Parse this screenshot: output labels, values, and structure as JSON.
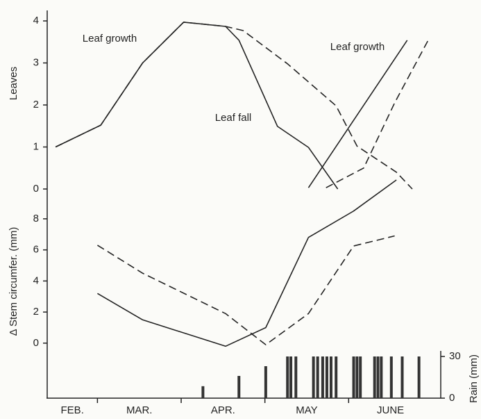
{
  "chart_data": [
    {
      "type": "line",
      "ylabel": "Leaves",
      "xlim": [
        0.4,
        5.1
      ],
      "ylim": [
        0,
        4.25
      ],
      "yticks": [
        0,
        1,
        2,
        3,
        4
      ],
      "color": "#222222",
      "annotations": [
        "Leaf growth",
        "Leaf fall",
        "Leaf growth"
      ],
      "series": [
        {
          "dash": false,
          "x": [
            0.5,
            1.04,
            1.54,
            2.03,
            2.53,
            2.69,
            3.15,
            3.52,
            3.87
          ],
          "values": [
            1.0,
            1.52,
            3.0,
            3.97,
            3.87,
            3.54,
            1.49,
            0.99,
            0
          ]
        },
        {
          "dash": true,
          "x": [
            0.5,
            1.04,
            1.54,
            2.03,
            2.53,
            2.74,
            3.27,
            3.85,
            4.1,
            4.57,
            4.76
          ],
          "values": [
            1.0,
            1.52,
            3.0,
            3.97,
            3.87,
            3.77,
            2.98,
            1.98,
            1.02,
            0.4,
            0
          ]
        },
        {
          "dash": false,
          "x": [
            3.52,
            4.7
          ],
          "values": [
            0.03,
            3.54
          ]
        },
        {
          "dash": true,
          "x": [
            3.73,
            4.18,
            4.55,
            4.95
          ],
          "values": [
            0.03,
            0.5,
            2.05,
            3.54
          ]
        }
      ]
    },
    {
      "type": "line",
      "ylabel": "Δ Stem circumfer. (mm)",
      "xlim": [
        0.4,
        5.1
      ],
      "ylim": [
        -0.5,
        10.5
      ],
      "yticks": [
        0,
        2,
        4,
        6,
        8
      ],
      "color": "#222222",
      "series": [
        {
          "dash": false,
          "x": [
            1.0,
            1.54,
            2.53,
            3.01,
            3.52,
            4.06,
            4.57
          ],
          "values": [
            3.2,
            1.5,
            -0.2,
            1.0,
            6.8,
            8.5,
            10.5
          ]
        },
        {
          "dash": true,
          "x": [
            1.0,
            1.54,
            2.53,
            3.01,
            3.52,
            4.06,
            4.55
          ],
          "values": [
            6.3,
            4.5,
            1.9,
            -0.1,
            1.9,
            6.25,
            6.9
          ]
        }
      ]
    },
    {
      "type": "bar",
      "ylabel": "Rain (mm)",
      "xlim": [
        0.4,
        5.1
      ],
      "ylim": [
        0,
        30
      ],
      "yticks": [
        0,
        30
      ],
      "color": "#333333",
      "categories": [
        "FEB.",
        "MAR.",
        "APR.",
        "MAY",
        "JUNE"
      ],
      "x": [
        2.26,
        2.69,
        3.01,
        3.27,
        3.31,
        3.37,
        3.58,
        3.63,
        3.69,
        3.74,
        3.79,
        3.85,
        4.06,
        4.1,
        4.14,
        4.31,
        4.35,
        4.39,
        4.51,
        4.64,
        4.84
      ],
      "values": [
        8.6,
        16,
        23,
        30,
        30,
        30,
        30,
        30,
        30,
        30,
        30,
        30,
        30,
        30,
        30,
        30,
        30,
        30,
        30,
        30,
        30
      ]
    }
  ]
}
